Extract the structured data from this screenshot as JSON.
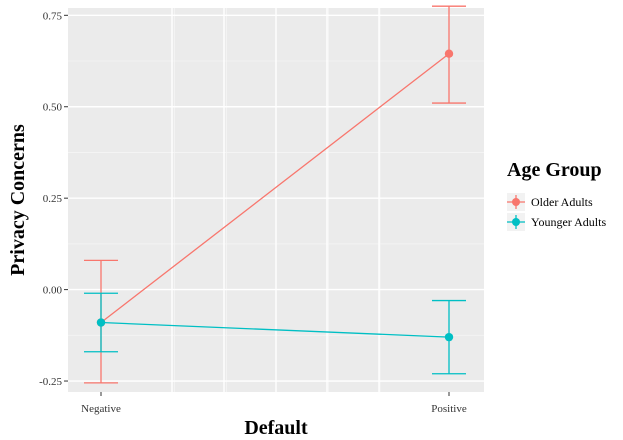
{
  "chart_data": {
    "type": "line",
    "xlabel": "Default",
    "ylabel": "Privacy Concerns",
    "categories": [
      "Negative",
      "Positive"
    ],
    "ylim": [
      -0.28,
      0.77
    ],
    "yticks": [
      "-0.25",
      "0.00",
      "0.25",
      "0.50",
      "0.75"
    ],
    "grid": true,
    "legend": {
      "title": "Age Group",
      "position": "right"
    },
    "series": [
      {
        "name": "Older Adults",
        "color": "#F8766D",
        "values": [
          -0.09,
          0.645
        ],
        "error_low": [
          -0.255,
          0.51
        ],
        "error_high": [
          0.08,
          0.775
        ]
      },
      {
        "name": "Younger Adults",
        "color": "#00BFC4",
        "values": [
          -0.09,
          -0.13
        ],
        "error_low": [
          -0.17,
          -0.23
        ],
        "error_high": [
          -0.01,
          -0.03
        ]
      }
    ]
  }
}
